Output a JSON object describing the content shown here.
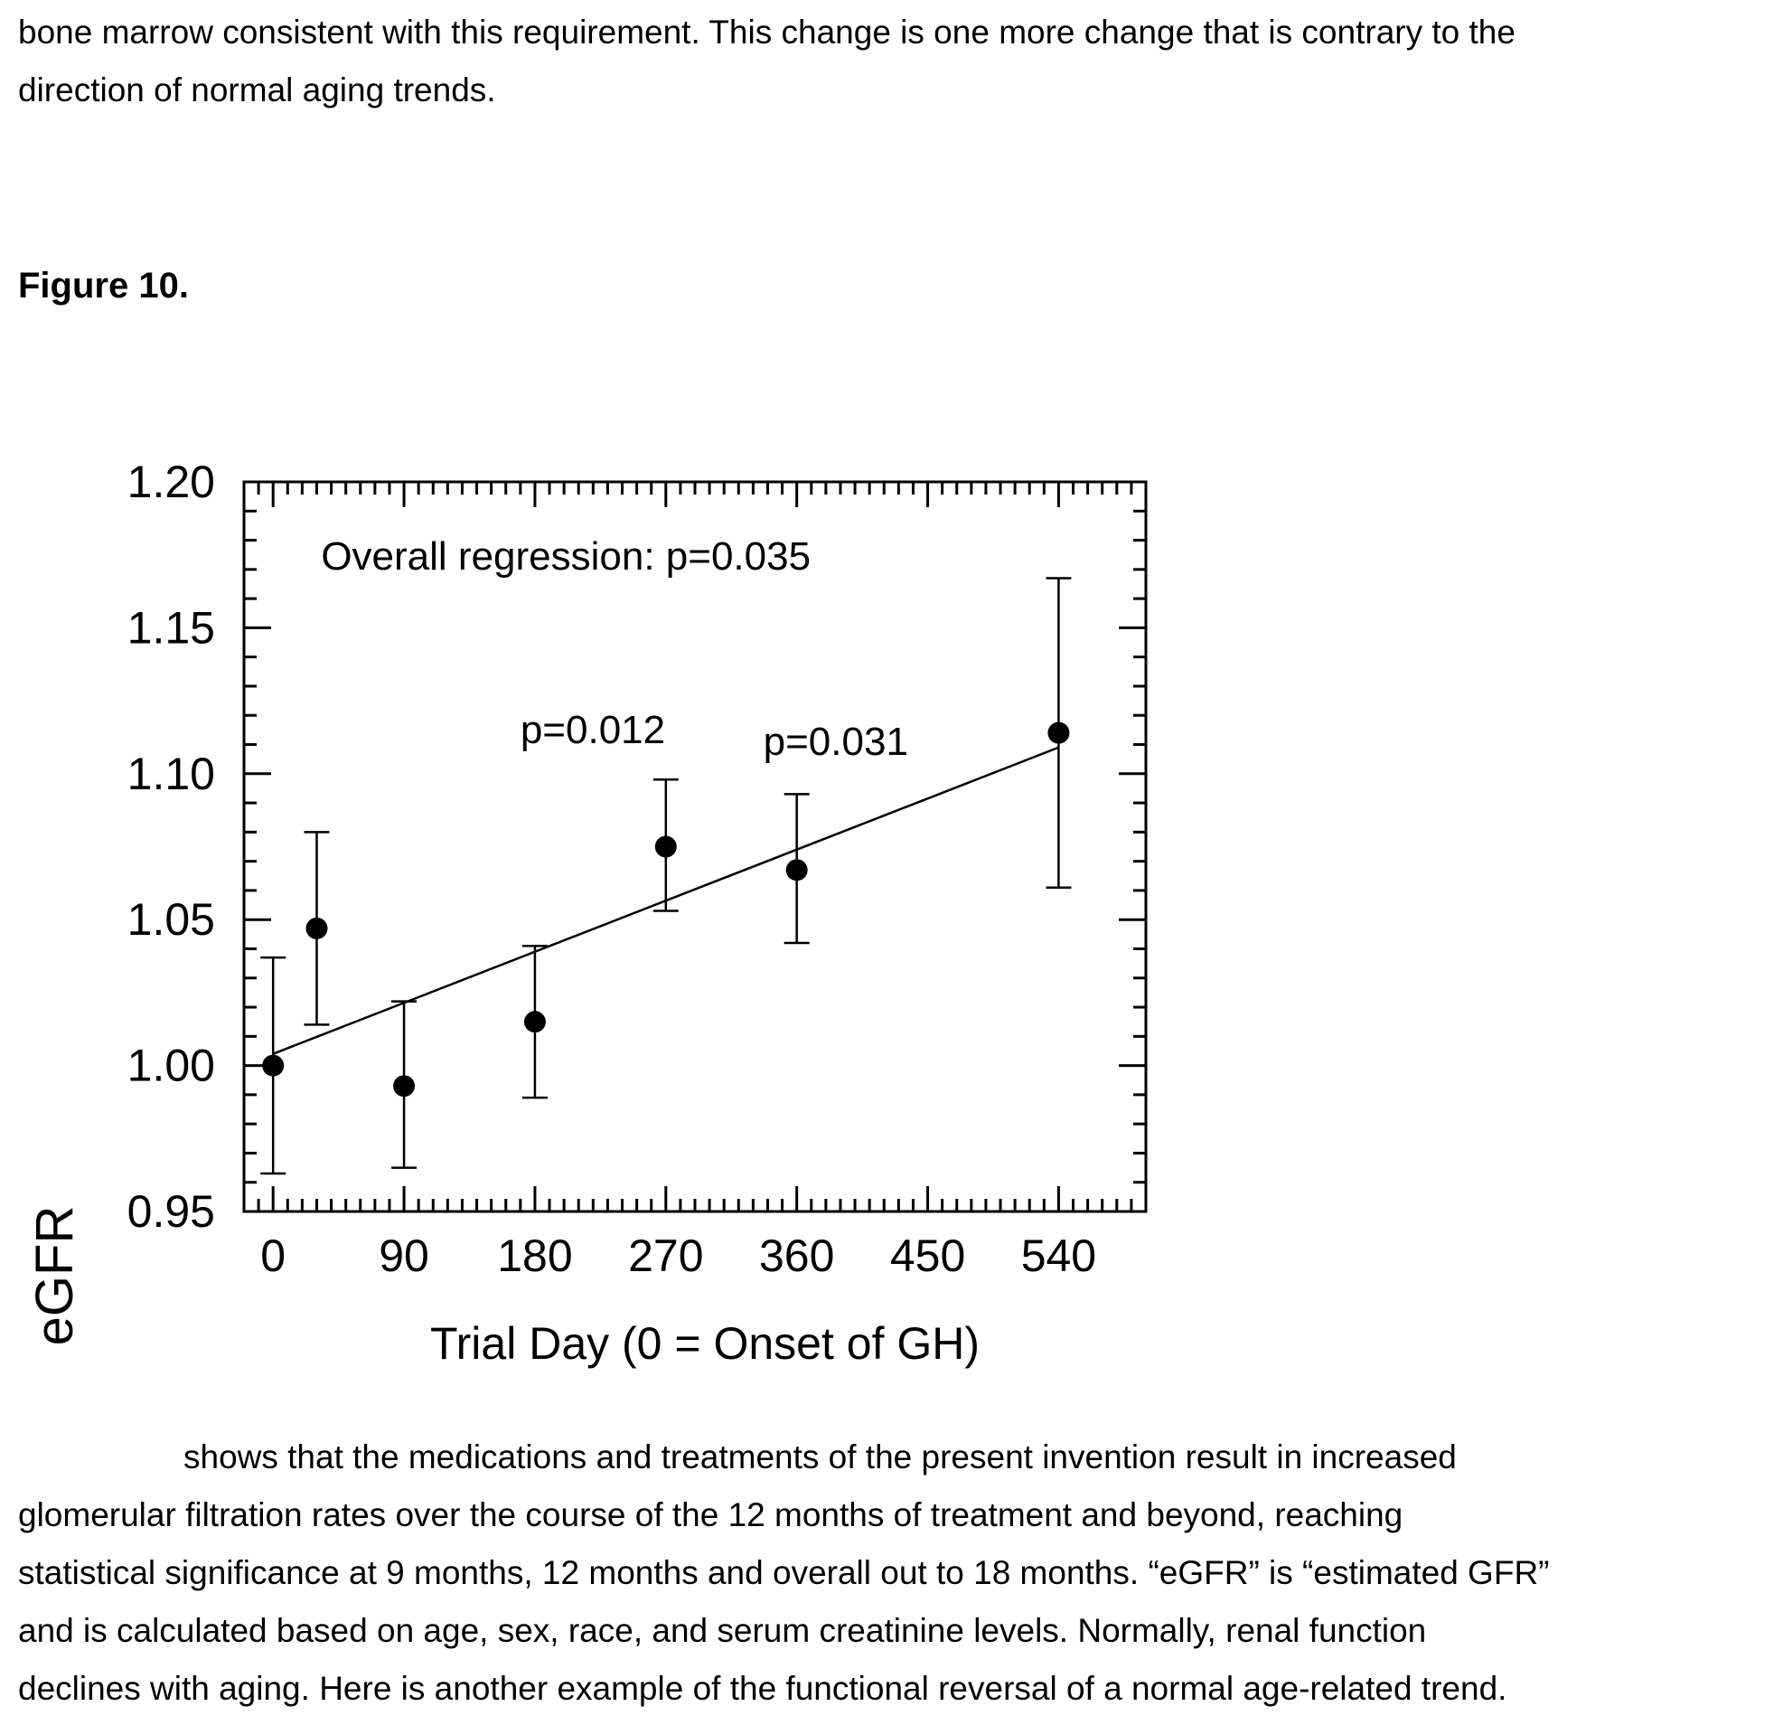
{
  "top_paragraph": {
    "lines": [
      "bone marrow consistent with this requirement.  This change is one more change that is contrary to the",
      "direction of normal aging trends."
    ]
  },
  "figure_label": "Figure 10.",
  "chart_data": {
    "type": "scatter",
    "title": "",
    "xlabel": "Trial Day (0 = Onset of GH)",
    "ylabel": "eGFR",
    "xlim": [
      -20,
      600
    ],
    "ylim": [
      0.95,
      1.2
    ],
    "x_ticks": [
      0,
      90,
      180,
      270,
      360,
      450,
      540
    ],
    "y_ticks": [
      "0.95",
      "1.00",
      "1.05",
      "1.10",
      "1.15",
      "1.20"
    ],
    "grid": false,
    "points": [
      {
        "x": 0,
        "y": 1.0,
        "err_low": 0.963,
        "err_high": 1.037
      },
      {
        "x": 30,
        "y": 1.047,
        "err_low": 1.014,
        "err_high": 1.08
      },
      {
        "x": 90,
        "y": 0.993,
        "err_low": 0.965,
        "err_high": 1.022
      },
      {
        "x": 180,
        "y": 1.015,
        "err_low": 0.989,
        "err_high": 1.041
      },
      {
        "x": 270,
        "y": 1.075,
        "err_low": 1.053,
        "err_high": 1.098
      },
      {
        "x": 360,
        "y": 1.067,
        "err_low": 1.042,
        "err_high": 1.093
      },
      {
        "x": 540,
        "y": 1.114,
        "err_low": 1.061,
        "err_high": 1.167
      }
    ],
    "regression_line": {
      "x": [
        0,
        540
      ],
      "y": [
        1.004,
        1.109
      ]
    },
    "annotations": [
      {
        "text": "Overall regression:  p=0.035",
        "x": 33,
        "y": 1.17
      },
      {
        "text": "p=0.012",
        "x": 170,
        "y": 1.1105
      },
      {
        "text": "p=0.031",
        "x": 337,
        "y": 1.1065
      }
    ]
  },
  "bottom_paragraph": {
    "lines": [
      "shows that the medications and treatments of the present invention result in increased",
      "glomerular filtration rates over the course of the 12 months of treatment and beyond, reaching",
      "statistical significance at 9 months, 12 months and overall out to 18 months.  “eGFR” is “estimated GFR”",
      "and is calculated based on age, sex, race, and serum creatinine levels.    Normally, renal function",
      "declines with aging.  Here is another example of the functional reversal of a normal age-related trend."
    ]
  }
}
